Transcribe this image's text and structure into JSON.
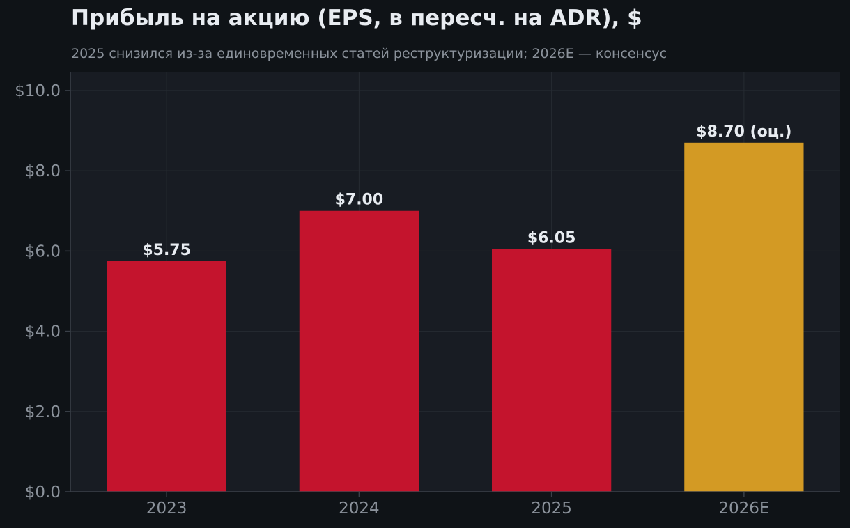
{
  "chart_data": {
    "type": "bar",
    "title": "Прибыль на акцию (EPS, в пересч. на ADR), $",
    "subtitle": "2025 снизился из-за единовременных статей реструктуризации; 2026E — консенсус",
    "categories": [
      "2023",
      "2024",
      "2025",
      "2026E"
    ],
    "values": [
      5.75,
      7.0,
      6.05,
      8.7
    ],
    "data_labels": [
      "$5.75",
      "$7.00",
      "$6.05",
      "$8.70 (оц.)"
    ],
    "bar_colors": [
      "#c4142d",
      "#c4142d",
      "#c4142d",
      "#d39a24"
    ],
    "yticks": [
      0,
      2,
      4,
      6,
      8,
      10
    ],
    "ytick_labels": [
      "$0.0",
      "$2.0",
      "$4.0",
      "$6.0",
      "$8.0",
      "$10.0"
    ],
    "ylim": [
      0,
      10.45
    ],
    "xlabel": "",
    "ylabel": "",
    "grid": true,
    "colors": {
      "page_background": "#0f1317",
      "plot_background": "#181c23",
      "grid": "#262b33",
      "axis": "#3a4049",
      "tick_text": "#8b929b",
      "label_text": "#e8ecf1"
    }
  }
}
